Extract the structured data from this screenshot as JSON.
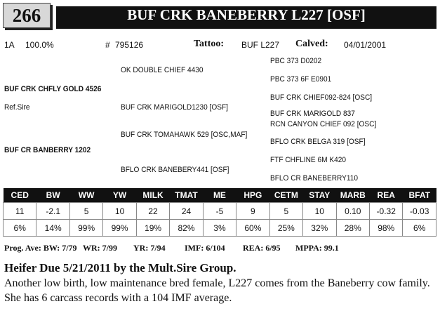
{
  "header": {
    "lot": "266",
    "name": "BUF CRK BANEBERRY L227 [OSF]"
  },
  "info": {
    "registration": "1A",
    "percent": "100.0%",
    "number_label": "#",
    "number": "795126",
    "tattoo_label": "Tattoo:",
    "tattoo": "BUF L227",
    "calved_label": "Calved:",
    "calved": "04/01/2001"
  },
  "pedigree": {
    "sire": "BUF CRK CHFLY GOLD 4526",
    "sire_note": "Ref.Sire",
    "dam": "BUF CR BANBERRY 1202",
    "grandparents": [
      "OK DOUBLE CHIEF 4430",
      "BUF CRK MARIGOLD1230 [OSF]",
      "BUF CRK TOMAHAWK 529 [OSC,MAF]",
      "BFLO CRK BANEBERY441 [OSF]"
    ],
    "great_grandparents": [
      "PBC 373 D0202",
      "PBC 373 6F E0901",
      "BUF CRK CHIEF092-824 [OSC]",
      "BUF CRK MARIGOLD 837",
      "RCN CANYON CHIEF 092  [OSC]",
      "BFLO CRK BELGA 319 [OSF]",
      "FTF CHFLINE 6M K420",
      "BFLO CR BANEBERRY110"
    ]
  },
  "epd": {
    "headers": [
      "CED",
      "BW",
      "WW",
      "YW",
      "MILK",
      "TMAT",
      "ME",
      "HPG",
      "CETM",
      "STAY",
      "MARB",
      "REA",
      "BFAT"
    ],
    "values": [
      "11",
      "-2.1",
      "5",
      "10",
      "22",
      "24",
      "-5",
      "9",
      "5",
      "10",
      "0.10",
      "-0.32",
      "-0.03"
    ],
    "percentiles": [
      "6%",
      "14%",
      "99%",
      "99%",
      "19%",
      "82%",
      "3%",
      "60%",
      "25%",
      "32%",
      "28%",
      "98%",
      "6%"
    ]
  },
  "progeny": [
    "Prog. Ave: BW: 7/79",
    "WR: 7/99",
    "YR: 7/94",
    "IMF: 6/104",
    "REA: 6/95",
    "MPPA: 99.1"
  ],
  "comment": {
    "heading": "Heifer Due 5/21/2011 by the Mult.Sire Group.",
    "text": "Another low birth, low maintenance bred female, L227 comes from the Baneberry cow family.  She has 6 carcass records with a 104 IMF average."
  }
}
